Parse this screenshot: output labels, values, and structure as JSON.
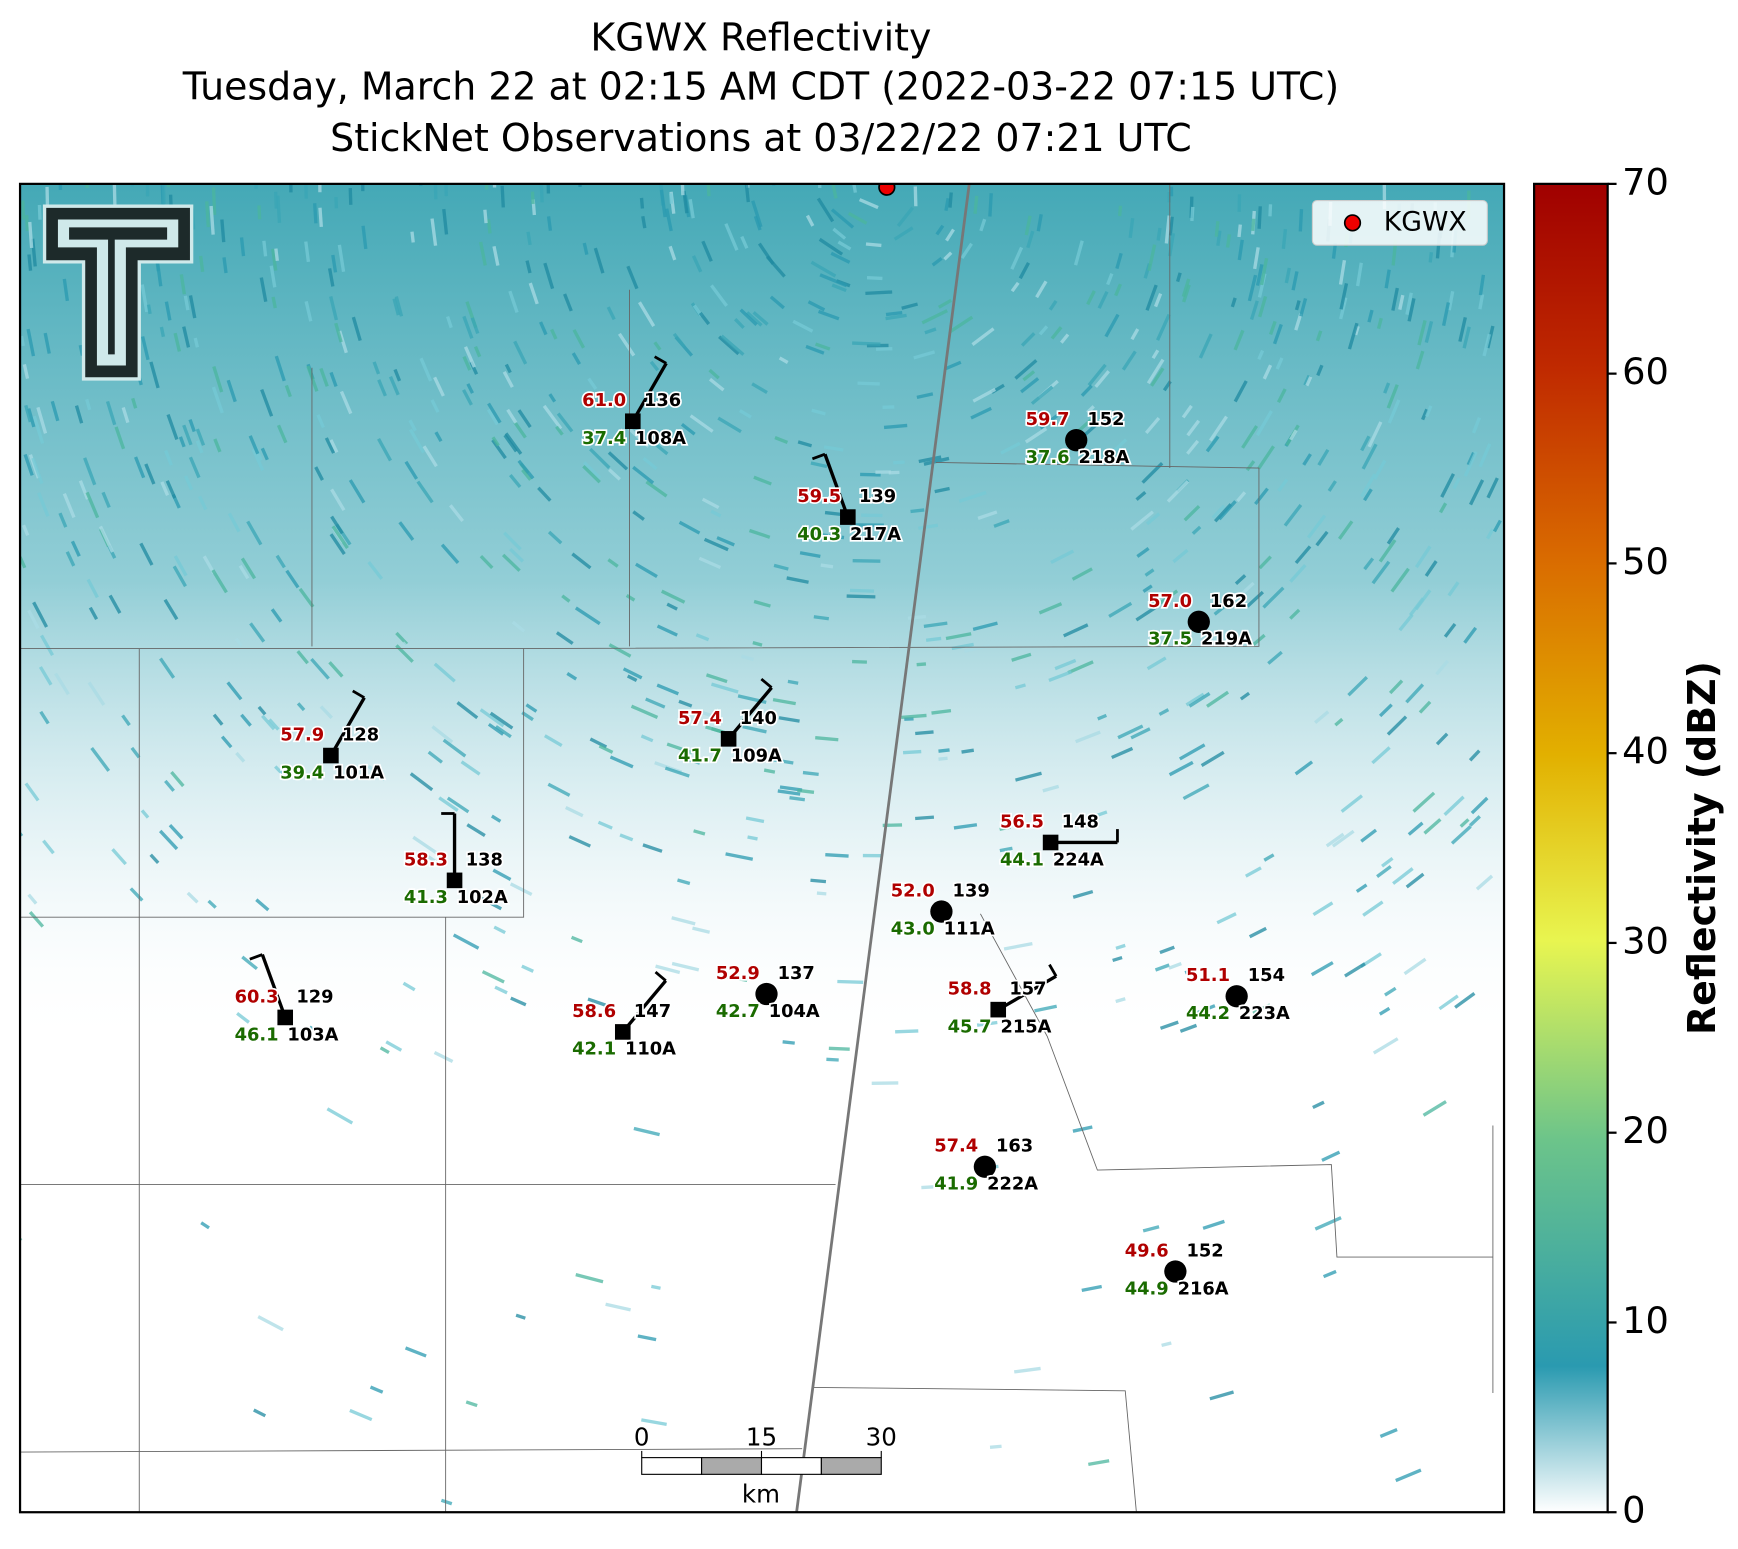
{
  "title": [
    "KGWX Reflectivity",
    "Tuesday, March 22 at 02:15 AM CDT (2022-03-22 07:15 UTC)",
    "StickNet Observations at 03/22/22 07:21 UTC"
  ],
  "legend_label": "KGWX",
  "stations": [
    {
      "id": "108A",
      "temp": "61.0",
      "value": "136",
      "dewpoint": "37.4",
      "marker": "square"
    },
    {
      "id": "217A",
      "temp": "59.5",
      "value": "139",
      "dewpoint": "40.3",
      "marker": "square"
    },
    {
      "id": "218A",
      "temp": "59.7",
      "value": "152",
      "dewpoint": "37.6",
      "marker": "circle"
    },
    {
      "id": "219A",
      "temp": "57.0",
      "value": "162",
      "dewpoint": "37.5",
      "marker": "circle"
    },
    {
      "id": "109A",
      "temp": "57.4",
      "value": "140",
      "dewpoint": "41.7",
      "marker": "square"
    },
    {
      "id": "101A",
      "temp": "57.9",
      "value": "128",
      "dewpoint": "39.4",
      "marker": "square"
    },
    {
      "id": "224A",
      "temp": "56.5",
      "value": "148",
      "dewpoint": "44.1",
      "marker": "square"
    },
    {
      "id": "102A",
      "temp": "58.3",
      "value": "138",
      "dewpoint": "41.3",
      "marker": "square"
    },
    {
      "id": "111A",
      "temp": "52.0",
      "value": "139",
      "dewpoint": "43.0",
      "marker": "circle"
    },
    {
      "id": "103A",
      "temp": "60.3",
      "value": "129",
      "dewpoint": "46.1",
      "marker": "square"
    },
    {
      "id": "104A",
      "temp": "52.9",
      "value": "137",
      "dewpoint": "42.7",
      "marker": "circle"
    },
    {
      "id": "110A",
      "temp": "58.6",
      "value": "147",
      "dewpoint": "42.1",
      "marker": "square"
    },
    {
      "id": "215A",
      "temp": "58.8",
      "value": "157",
      "dewpoint": "45.7",
      "marker": "square"
    },
    {
      "id": "223A",
      "temp": "51.1",
      "value": "154",
      "dewpoint": "44.2",
      "marker": "circle"
    },
    {
      "id": "222A",
      "temp": "57.4",
      "value": "163",
      "dewpoint": "41.9",
      "marker": "circle"
    },
    {
      "id": "216A",
      "temp": "49.6",
      "value": "152",
      "dewpoint": "44.9",
      "marker": "circle"
    }
  ],
  "colorbar": {
    "label": "Reflectivity (dBZ)",
    "lim": [
      0,
      70
    ],
    "ticks": [
      0,
      10,
      20,
      30,
      40,
      50,
      60,
      70
    ]
  },
  "scale_bar": {
    "ticks": [
      0,
      15,
      30
    ],
    "unit": "km"
  }
}
